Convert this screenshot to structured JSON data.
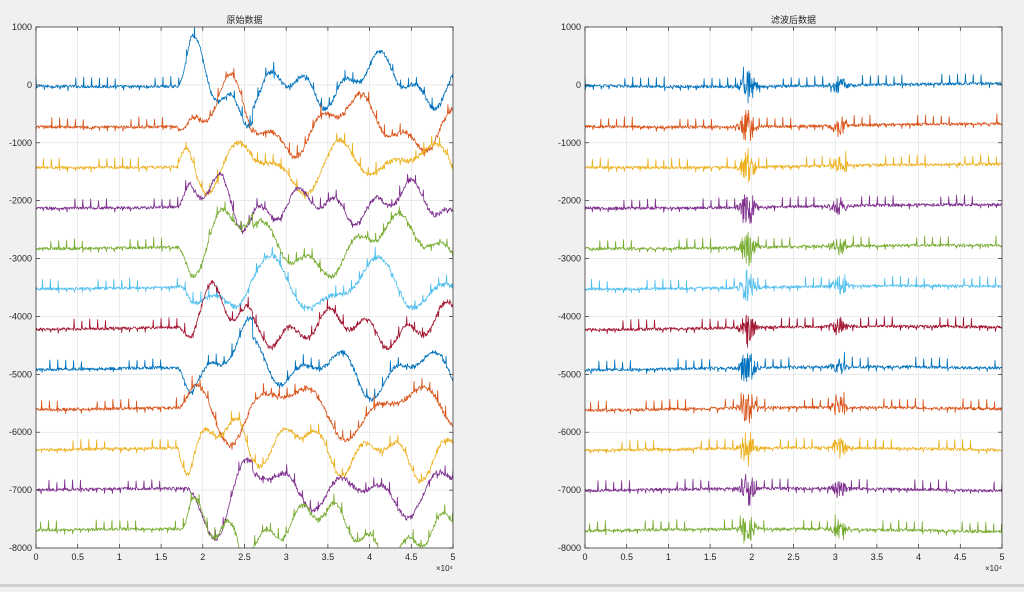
{
  "figure": {
    "background": "#f0f0f0",
    "axes_background": "#ffffff"
  },
  "chart_data": [
    {
      "type": "line",
      "title": "原始数据",
      "xlabel": "",
      "ylabel": "",
      "xlim": [
        0,
        50000
      ],
      "ylim": [
        -8000,
        1000
      ],
      "x_ticks": [
        0,
        5000,
        10000,
        15000,
        20000,
        25000,
        30000,
        35000,
        40000,
        45000,
        50000
      ],
      "x_tick_labels": [
        "0",
        "0.5",
        "1",
        "1.5",
        "2",
        "2.5",
        "3",
        "3.5",
        "4",
        "4.5",
        "5"
      ],
      "x_exponent_label": "×10⁴",
      "y_ticks": [
        1000,
        0,
        -1000,
        -2000,
        -3000,
        -4000,
        -5000,
        -6000,
        -7000,
        -8000
      ],
      "y_tick_labels": [
        "1000",
        "0",
        "-1000",
        "-2000",
        "-3000",
        "-4000",
        "-5000",
        "-6000",
        "-7000",
        "-8000"
      ],
      "grid": true,
      "legend": "none",
      "series_offsets": [
        0,
        -700,
        -1400,
        -2100,
        -2800,
        -3500,
        -4200,
        -4900,
        -5600,
        -6300,
        -7000,
        -7700
      ],
      "series_colors": [
        "#0072BD",
        "#D95319",
        "#EDB120",
        "#7E2F8E",
        "#77AC30",
        "#4DBEEE",
        "#A2142F",
        "#0072BD",
        "#D95319",
        "#EDB120",
        "#7E2F8E",
        "#77AC30"
      ],
      "spike_interval": 950,
      "spike_height": 150,
      "baseline_noise": 25,
      "artifact_range": [
        17000,
        50000
      ],
      "artifact_amplitude": 500
    },
    {
      "type": "line",
      "title": "滤波后数据",
      "xlabel": "",
      "ylabel": "",
      "xlim": [
        0,
        50000
      ],
      "ylim": [
        -8000,
        1000
      ],
      "x_ticks": [
        0,
        5000,
        10000,
        15000,
        20000,
        25000,
        30000,
        35000,
        40000,
        45000,
        50000
      ],
      "x_tick_labels": [
        "0",
        "0.5",
        "1",
        "1.5",
        "2",
        "2.5",
        "3",
        "3.5",
        "4",
        "4.5",
        "5"
      ],
      "x_exponent_label": "×10⁴",
      "y_ticks": [
        1000,
        0,
        -1000,
        -2000,
        -3000,
        -4000,
        -5000,
        -6000,
        -7000,
        -8000
      ],
      "y_tick_labels": [
        "1000",
        "0",
        "-1000",
        "-2000",
        "-3000",
        "-4000",
        "-5000",
        "-6000",
        "-7000",
        "-8000"
      ],
      "grid": true,
      "legend": "none",
      "series_offsets": [
        0,
        -700,
        -1400,
        -2100,
        -2800,
        -3500,
        -4200,
        -4900,
        -5600,
        -6300,
        -7000,
        -7700
      ],
      "series_colors": [
        "#0072BD",
        "#D95319",
        "#EDB120",
        "#7E2F8E",
        "#77AC30",
        "#4DBEEE",
        "#A2142F",
        "#0072BD",
        "#D95319",
        "#EDB120",
        "#7E2F8E",
        "#77AC30"
      ],
      "spike_interval": 950,
      "spike_height": 150,
      "baseline_noise": 25,
      "burst_centers": [
        19500,
        30500
      ],
      "burst_amplitude": 180
    }
  ]
}
